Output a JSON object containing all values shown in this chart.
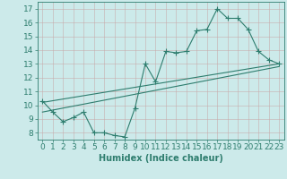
{
  "line1_x": [
    0,
    1,
    2,
    3,
    4,
    5,
    6,
    7,
    8,
    9,
    10,
    11,
    12,
    13,
    14,
    15,
    16,
    17,
    18,
    19,
    20,
    21,
    22,
    23
  ],
  "line1_y": [
    10.3,
    9.5,
    8.8,
    9.1,
    9.5,
    8.0,
    8.0,
    7.8,
    7.7,
    9.8,
    13.0,
    11.7,
    13.9,
    13.8,
    13.9,
    15.4,
    15.5,
    17.0,
    16.3,
    16.3,
    15.5,
    13.9,
    13.3,
    13.0
  ],
  "line2_x": [
    0,
    23
  ],
  "line2_y": [
    9.5,
    12.8
  ],
  "line3_x": [
    0,
    23
  ],
  "line3_y": [
    10.2,
    13.0
  ],
  "line_color": "#2e7d6e",
  "bg_color": "#cceaea",
  "grid_color": "#b8d0d0",
  "xlabel": "Humidex (Indice chaleur)",
  "xlim": [
    -0.5,
    23.5
  ],
  "ylim": [
    7.5,
    17.5
  ],
  "yticks": [
    8,
    9,
    10,
    11,
    12,
    13,
    14,
    15,
    16,
    17
  ],
  "xticks": [
    0,
    1,
    2,
    3,
    4,
    5,
    6,
    7,
    8,
    9,
    10,
    11,
    12,
    13,
    14,
    15,
    16,
    17,
    18,
    19,
    20,
    21,
    22,
    23
  ],
  "marker": "+",
  "marker_size": 4.0,
  "line_width": 0.8,
  "font_size": 6.5,
  "xlabel_fontsize": 7.0
}
